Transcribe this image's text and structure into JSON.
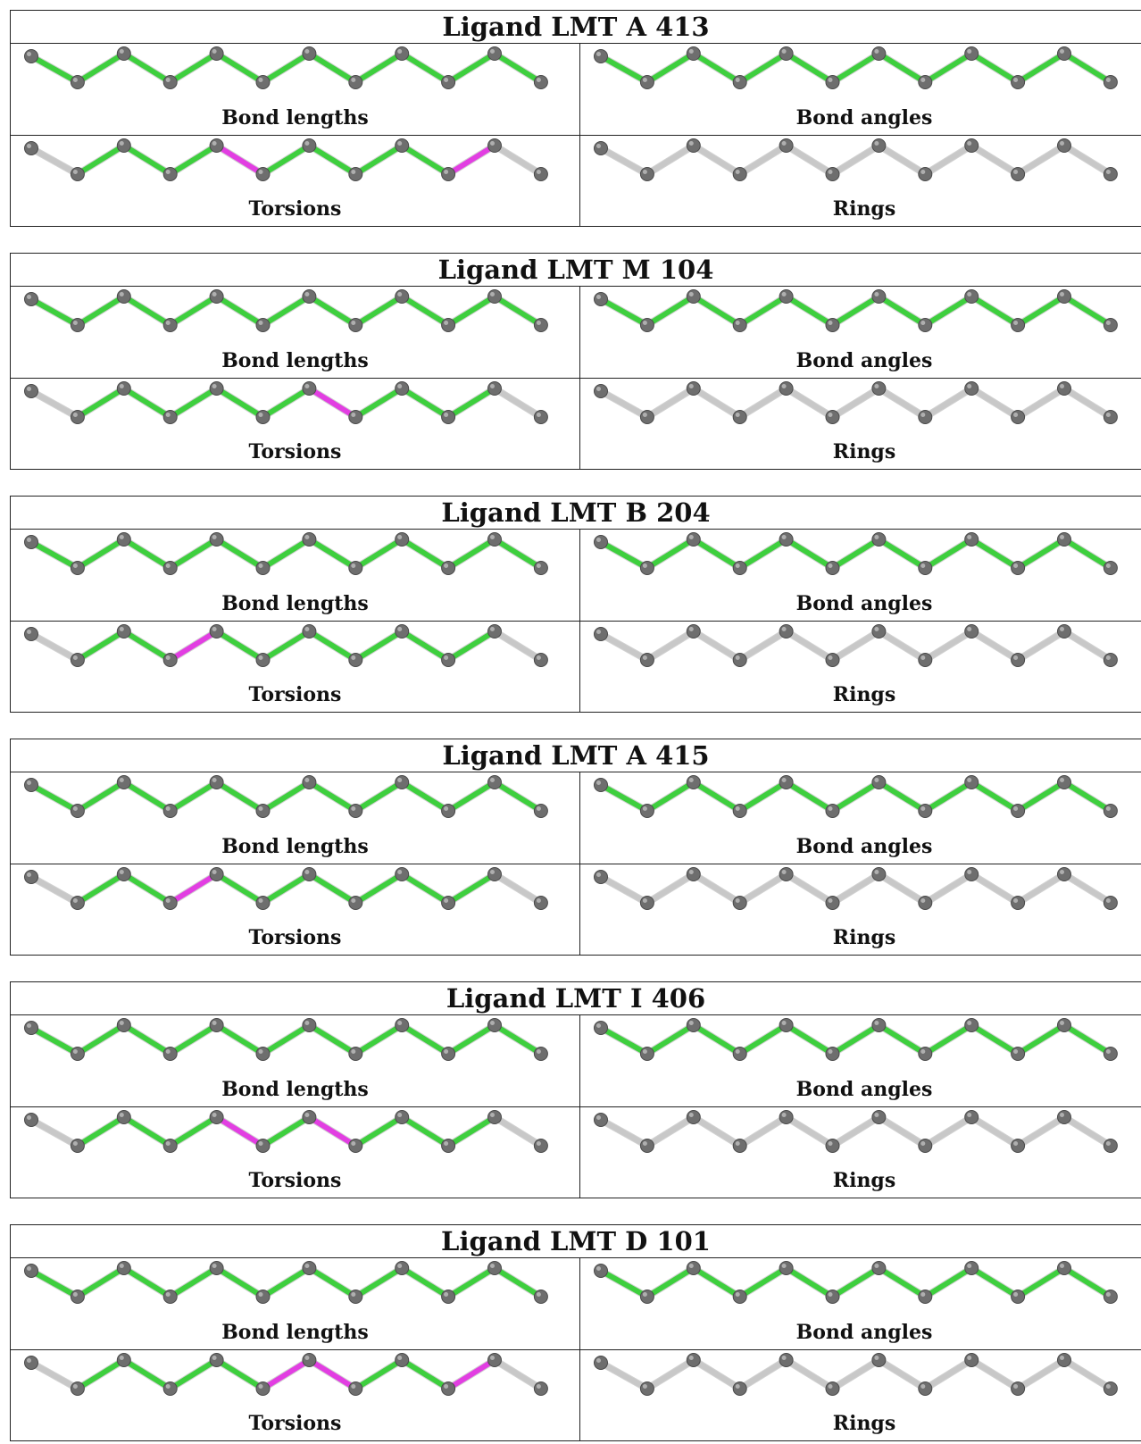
{
  "colors": {
    "bond_ok": "#3ecf3e",
    "bond_outlier": "#e23ee2",
    "bond_none": "#c8c8c8",
    "atom": "#6e6e6e"
  },
  "icon": "zigzag-molecule-chain",
  "panel_labels": [
    "Bond lengths",
    "Bond angles",
    "Torsions",
    "Rings"
  ],
  "ligands": [
    {
      "title": "Ligand LMT A 413",
      "panels": [
        {
          "label": "Bond lengths",
          "bonds": [
            "g",
            "g",
            "g",
            "g",
            "g",
            "g",
            "g",
            "g",
            "g",
            "g",
            "g"
          ]
        },
        {
          "label": "Bond angles",
          "bonds": [
            "g",
            "g",
            "g",
            "g",
            "g",
            "g",
            "g",
            "g",
            "g",
            "g",
            "g"
          ]
        },
        {
          "label": "Torsions",
          "bonds": [
            "n",
            "g",
            "g",
            "g",
            "m",
            "g",
            "g",
            "g",
            "g",
            "m",
            "n"
          ]
        },
        {
          "label": "Rings",
          "bonds": [
            "n",
            "n",
            "n",
            "n",
            "n",
            "n",
            "n",
            "n",
            "n",
            "n",
            "n"
          ]
        }
      ]
    },
    {
      "title": "Ligand LMT M 104",
      "panels": [
        {
          "label": "Bond lengths",
          "bonds": [
            "g",
            "g",
            "g",
            "g",
            "g",
            "g",
            "g",
            "g",
            "g",
            "g",
            "g"
          ]
        },
        {
          "label": "Bond angles",
          "bonds": [
            "g",
            "g",
            "g",
            "g",
            "g",
            "g",
            "g",
            "g",
            "g",
            "g",
            "g"
          ]
        },
        {
          "label": "Torsions",
          "bonds": [
            "n",
            "g",
            "g",
            "g",
            "g",
            "g",
            "m",
            "g",
            "g",
            "g",
            "n"
          ]
        },
        {
          "label": "Rings",
          "bonds": [
            "n",
            "n",
            "n",
            "n",
            "n",
            "n",
            "n",
            "n",
            "n",
            "n",
            "n"
          ]
        }
      ]
    },
    {
      "title": "Ligand LMT B 204",
      "panels": [
        {
          "label": "Bond lengths",
          "bonds": [
            "g",
            "g",
            "g",
            "g",
            "g",
            "g",
            "g",
            "g",
            "g",
            "g",
            "g"
          ]
        },
        {
          "label": "Bond angles",
          "bonds": [
            "g",
            "g",
            "g",
            "g",
            "g",
            "g",
            "g",
            "g",
            "g",
            "g",
            "g"
          ]
        },
        {
          "label": "Torsions",
          "bonds": [
            "n",
            "g",
            "g",
            "m",
            "g",
            "g",
            "g",
            "g",
            "g",
            "g",
            "n"
          ]
        },
        {
          "label": "Rings",
          "bonds": [
            "n",
            "n",
            "n",
            "n",
            "n",
            "n",
            "n",
            "n",
            "n",
            "n",
            "n"
          ]
        }
      ]
    },
    {
      "title": "Ligand LMT A 415",
      "panels": [
        {
          "label": "Bond lengths",
          "bonds": [
            "g",
            "g",
            "g",
            "g",
            "g",
            "g",
            "g",
            "g",
            "g",
            "g",
            "g"
          ]
        },
        {
          "label": "Bond angles",
          "bonds": [
            "g",
            "g",
            "g",
            "g",
            "g",
            "g",
            "g",
            "g",
            "g",
            "g",
            "g"
          ]
        },
        {
          "label": "Torsions",
          "bonds": [
            "n",
            "g",
            "g",
            "m",
            "g",
            "g",
            "g",
            "g",
            "g",
            "g",
            "n"
          ]
        },
        {
          "label": "Rings",
          "bonds": [
            "n",
            "n",
            "n",
            "n",
            "n",
            "n",
            "n",
            "n",
            "n",
            "n",
            "n"
          ]
        }
      ]
    },
    {
      "title": "Ligand LMT I 406",
      "panels": [
        {
          "label": "Bond lengths",
          "bonds": [
            "g",
            "g",
            "g",
            "g",
            "g",
            "g",
            "g",
            "g",
            "g",
            "g",
            "g"
          ]
        },
        {
          "label": "Bond angles",
          "bonds": [
            "g",
            "g",
            "g",
            "g",
            "g",
            "g",
            "g",
            "g",
            "g",
            "g",
            "g"
          ]
        },
        {
          "label": "Torsions",
          "bonds": [
            "n",
            "g",
            "g",
            "g",
            "m",
            "g",
            "m",
            "g",
            "g",
            "g",
            "n"
          ]
        },
        {
          "label": "Rings",
          "bonds": [
            "n",
            "n",
            "n",
            "n",
            "n",
            "n",
            "n",
            "n",
            "n",
            "n",
            "n"
          ]
        }
      ]
    },
    {
      "title": "Ligand LMT D 101",
      "panels": [
        {
          "label": "Bond lengths",
          "bonds": [
            "g",
            "g",
            "g",
            "g",
            "g",
            "g",
            "g",
            "g",
            "g",
            "g",
            "g"
          ]
        },
        {
          "label": "Bond angles",
          "bonds": [
            "g",
            "g",
            "g",
            "g",
            "g",
            "g",
            "g",
            "g",
            "g",
            "g",
            "g"
          ]
        },
        {
          "label": "Torsions",
          "bonds": [
            "n",
            "g",
            "g",
            "g",
            "g",
            "m",
            "m",
            "g",
            "g",
            "m",
            "n"
          ]
        },
        {
          "label": "Rings",
          "bonds": [
            "n",
            "n",
            "n",
            "n",
            "n",
            "n",
            "n",
            "n",
            "n",
            "n",
            "n"
          ]
        }
      ]
    }
  ]
}
